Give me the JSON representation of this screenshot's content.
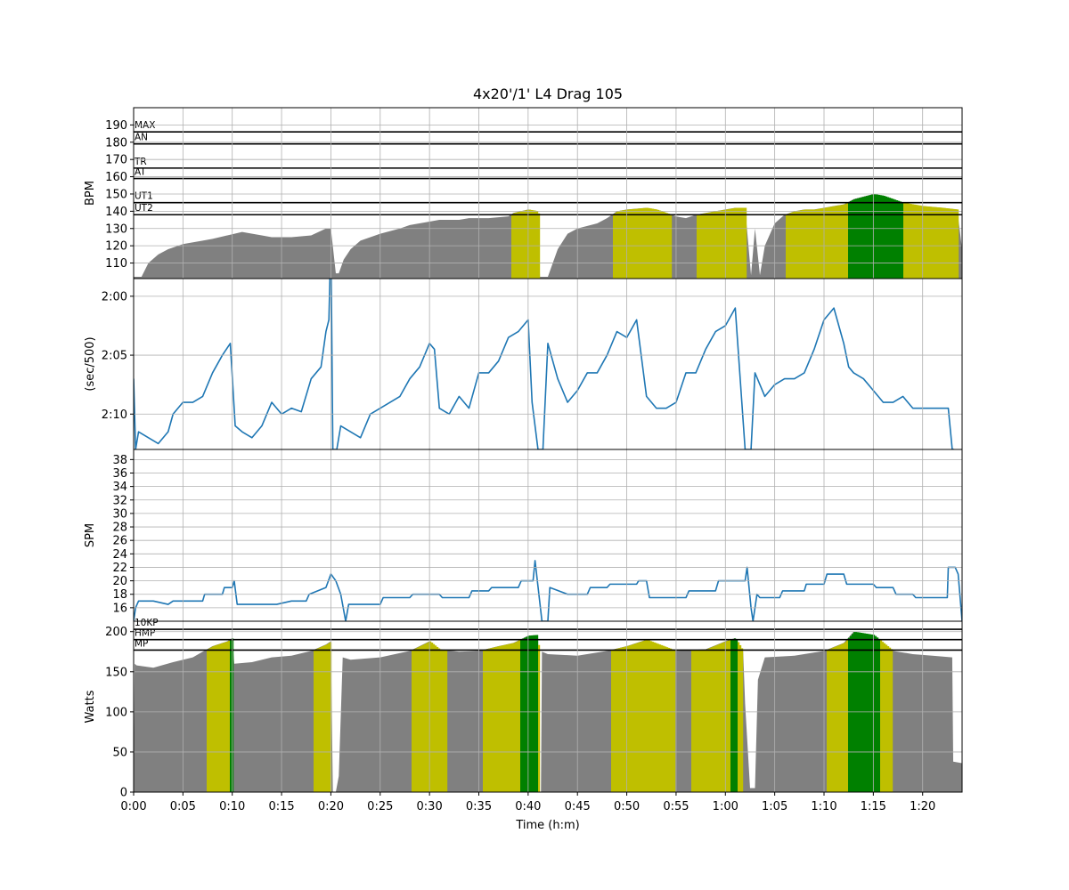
{
  "figure": {
    "title": "4x20'/1' L4 Drag 105",
    "xlabel": "Time (h:m)"
  },
  "chart_data": [
    {
      "type": "area",
      "panel": "hr",
      "ylabel": "BPM",
      "xlim": [
        0,
        84
      ],
      "ylim": [
        101,
        200
      ],
      "yticks": [
        110,
        120,
        130,
        140,
        150,
        160,
        170,
        180,
        190
      ],
      "grid": true,
      "zone_lines": [
        {
          "label": "MAX",
          "value": 186
        },
        {
          "label": "AN",
          "value": 179
        },
        {
          "label": "TR",
          "value": 165
        },
        {
          "label": "AT",
          "value": 159
        },
        {
          "label": "UT1",
          "value": 145
        },
        {
          "label": "UT2",
          "value": 138
        }
      ],
      "zone_colors": {
        "base": "#808080",
        "UT2": "#bfbf00",
        "UT1": "#008000"
      },
      "series": [
        {
          "x": [
            0,
            0.8,
            1.5,
            2.5,
            3.5,
            5,
            7,
            8,
            9.5,
            11,
            13,
            14,
            16,
            18,
            19.5,
            20,
            20.5,
            20.8,
            21.3,
            22,
            23,
            25,
            27,
            28,
            30,
            31,
            33,
            34,
            36,
            38,
            38.5,
            40,
            41,
            41.2,
            42,
            43,
            44,
            45,
            47,
            48,
            49,
            50,
            52,
            53,
            55,
            56,
            57,
            58,
            60,
            61,
            62,
            62.6,
            63,
            63.5,
            64,
            65,
            66,
            67,
            68,
            69,
            70,
            71,
            72,
            73,
            75,
            76,
            77,
            78,
            80,
            82,
            83.5,
            84
          ],
          "y": [
            102,
            102,
            110,
            115,
            118,
            121,
            123,
            124,
            126,
            128,
            126,
            125,
            125,
            126,
            130,
            130,
            104,
            104,
            112,
            118,
            123,
            127,
            130,
            132,
            134,
            135,
            135,
            136,
            136,
            137,
            139,
            141,
            140,
            102,
            102,
            118,
            127,
            130,
            133,
            136,
            140,
            141,
            142,
            141,
            137,
            136,
            138,
            139,
            141,
            142,
            142,
            103,
            130,
            103,
            120,
            133,
            138,
            140,
            141,
            141,
            142,
            143,
            144,
            147,
            150,
            149,
            147,
            145,
            143,
            142,
            141,
            118
          ]
        }
      ]
    },
    {
      "type": "line",
      "panel": "pace",
      "ylabel": "(sec/500)",
      "xlim": [
        0,
        84
      ],
      "ylim_seconds": [
        133,
        118.5
      ],
      "yticks_seconds": [
        120,
        125,
        130
      ],
      "ytick_labels": [
        "2:00",
        "2:05",
        "2:10"
      ],
      "grid": true,
      "color": "#1f77b4",
      "series": [
        {
          "x": [
            0,
            0.2,
            0.5,
            1.5,
            2.5,
            3.5,
            4,
            5,
            6,
            7,
            8,
            9,
            9.8,
            10.3,
            11,
            12,
            13,
            14,
            15,
            16,
            17,
            18,
            19,
            19.5,
            19.8,
            20,
            20.2,
            20.6,
            21,
            22,
            23,
            24,
            25,
            26,
            27,
            28,
            29,
            30,
            30.5,
            31,
            32,
            33,
            34,
            35,
            36,
            37,
            38,
            39,
            40,
            40.4,
            41,
            41.5,
            42,
            43,
            44,
            45,
            46,
            47,
            48,
            49,
            50,
            51,
            52,
            53,
            54,
            55,
            56,
            57,
            58,
            59,
            60,
            61,
            61.5,
            62,
            62.6,
            63,
            64,
            65,
            66,
            67,
            68,
            69,
            70,
            71,
            72,
            72.5,
            73,
            74,
            75,
            76,
            77,
            78,
            79,
            80,
            81,
            82,
            82.6,
            83,
            83.2
          ],
          "y": [
            127,
            133,
            131.5,
            132,
            132.5,
            131.5,
            130,
            129,
            129,
            128.5,
            126.5,
            125,
            124,
            131,
            131.5,
            132,
            131,
            129,
            130,
            129.5,
            129.8,
            127,
            126,
            123,
            122,
            115,
            133,
            133,
            131,
            131.5,
            132,
            130,
            129.5,
            129,
            128.5,
            127,
            126,
            124,
            124.5,
            129.5,
            130,
            128.5,
            129.5,
            126.5,
            126.5,
            125.5,
            123.5,
            123,
            122,
            129,
            133,
            133,
            124,
            127,
            129,
            128,
            126.5,
            126.5,
            125,
            123,
            123.5,
            122,
            128.5,
            129.5,
            129.5,
            129,
            126.5,
            126.5,
            124.5,
            123,
            122.5,
            121,
            127,
            133,
            133,
            126.5,
            128.5,
            127.5,
            127,
            127,
            126.5,
            124.5,
            122,
            121,
            124,
            126,
            126.5,
            127,
            128,
            129,
            129,
            128.5,
            129.5,
            129.5,
            129.5,
            129.5,
            129.5,
            133,
            133
          ]
        }
      ]
    },
    {
      "type": "line",
      "panel": "spm",
      "ylabel": "SPM",
      "xlim": [
        0,
        84
      ],
      "ylim": [
        14,
        39.5
      ],
      "yticks": [
        16,
        18,
        20,
        22,
        24,
        26,
        28,
        30,
        32,
        34,
        36,
        38
      ],
      "grid": true,
      "color": "#1f77b4",
      "series": [
        {
          "x": [
            0,
            0.2,
            0.5,
            2,
            3.5,
            4,
            7,
            7.2,
            9,
            9.2,
            10,
            10.2,
            10.5,
            13,
            14.5,
            16,
            17.5,
            17.8,
            19.5,
            20,
            20.5,
            21,
            21.5,
            21.8,
            25,
            25.3,
            28,
            28.3,
            31,
            31.3,
            34,
            34.3,
            36,
            36.3,
            39,
            39.3,
            40.5,
            40.7,
            41.4,
            42,
            42.2,
            44,
            46,
            46.3,
            48,
            48.3,
            51,
            51.2,
            52,
            52.3,
            56,
            56.3,
            59,
            59.3,
            62,
            62.2,
            62.6,
            62.8,
            63.2,
            63.5,
            65.5,
            65.8,
            68,
            68.2,
            70,
            70.3,
            72,
            72.3,
            75,
            75.3,
            77,
            77.3,
            79,
            79.3,
            82.5,
            82.6,
            83.3,
            83.6,
            84
          ],
          "y": [
            14,
            16,
            17,
            17,
            16.5,
            17,
            17,
            18,
            18,
            19,
            19,
            20,
            16.5,
            16.5,
            16.5,
            17,
            17,
            18,
            19,
            21,
            20,
            18,
            14,
            16.5,
            16.5,
            17.5,
            17.5,
            18,
            18,
            17.5,
            17.5,
            18.5,
            18.5,
            19,
            19,
            20,
            20,
            23,
            14,
            14,
            19,
            18,
            18,
            19,
            19,
            19.5,
            19.5,
            20,
            20,
            17.5,
            17.5,
            18.5,
            18.5,
            20,
            20,
            22,
            16,
            14,
            18,
            17.5,
            17.5,
            18.5,
            18.5,
            19.5,
            19.5,
            21,
            21,
            19.5,
            19.5,
            19,
            19,
            18,
            18,
            17.5,
            17.5,
            22,
            22,
            21,
            14
          ]
        }
      ]
    },
    {
      "type": "area",
      "panel": "power",
      "ylabel": "Watts",
      "xlim": [
        0,
        84
      ],
      "ylim": [
        0,
        213
      ],
      "yticks": [
        0,
        50,
        100,
        150,
        200
      ],
      "xticks": [
        0,
        5,
        10,
        15,
        20,
        25,
        30,
        35,
        40,
        45,
        50,
        55,
        60,
        65,
        70,
        75,
        80
      ],
      "xtick_labels": [
        "0:00",
        "0:05",
        "0:10",
        "0:15",
        "0:20",
        "0:25",
        "0:30",
        "0:35",
        "0:40",
        "0:45",
        "0:50",
        "0:55",
        "1:00",
        "1:05",
        "1:10",
        "1:15",
        "1:20"
      ],
      "grid": true,
      "zone_lines": [
        {
          "label": "10KP",
          "value": 203
        },
        {
          "label": "HMP",
          "value": 190
        },
        {
          "label": "MP",
          "value": 177
        }
      ],
      "zone_colors": {
        "base": "#808080",
        "MP": "#bfbf00",
        "HMP": "#008000",
        "10KP": "#00008b"
      },
      "series": [
        {
          "x": [
            0,
            0.1,
            0.3,
            2,
            4,
            6,
            7,
            8,
            9.5,
            10,
            10.2,
            12,
            14,
            16,
            18,
            19.5,
            20,
            20.2,
            20.5,
            20.8,
            21.2,
            22,
            25,
            28,
            30,
            31,
            33,
            35,
            37,
            38.5,
            40,
            41,
            41.1,
            41.3,
            41.4,
            42,
            45,
            48,
            50,
            52,
            55,
            58,
            60,
            61,
            61.8,
            62,
            62.5,
            63,
            63.3,
            64,
            67,
            70,
            72,
            73,
            75,
            77,
            79,
            81,
            83,
            83.1,
            84
          ],
          "y": [
            0,
            160,
            158,
            155,
            162,
            168,
            175,
            182,
            188,
            192,
            160,
            162,
            168,
            170,
            176,
            184,
            188,
            0,
            0,
            20,
            168,
            165,
            168,
            176,
            188,
            178,
            175,
            176,
            182,
            186,
            195,
            196,
            0,
            0,
            175,
            172,
            170,
            176,
            182,
            190,
            176,
            178,
            188,
            192,
            175,
            110,
            5,
            5,
            140,
            168,
            170,
            176,
            186,
            200,
            196,
            176,
            172,
            170,
            168,
            38,
            36
          ]
        }
      ]
    }
  ]
}
